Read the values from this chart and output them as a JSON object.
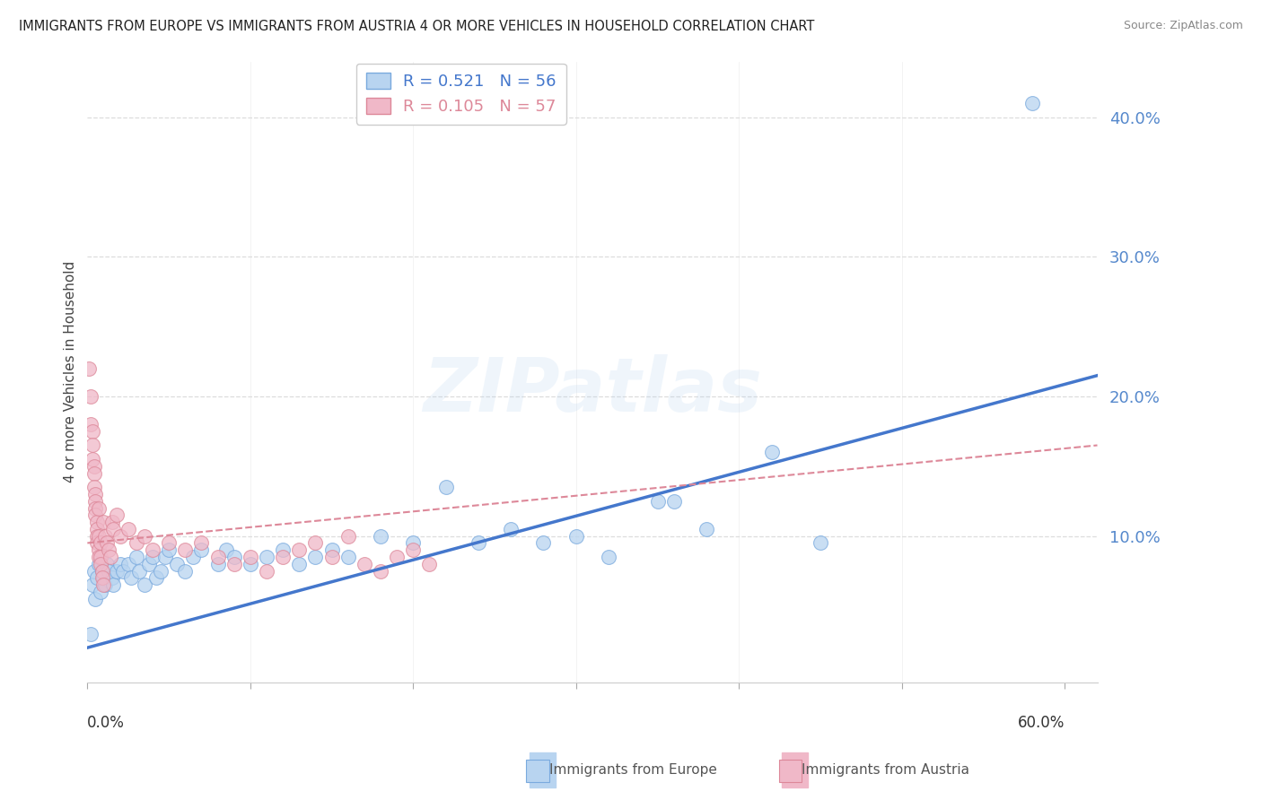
{
  "title": "IMMIGRANTS FROM EUROPE VS IMMIGRANTS FROM AUSTRIA 4 OR MORE VEHICLES IN HOUSEHOLD CORRELATION CHART",
  "source": "Source: ZipAtlas.com",
  "ylabel": "4 or more Vehicles in Household",
  "legend_europe": {
    "R": "0.521",
    "N": "56"
  },
  "legend_austria": {
    "R": "0.105",
    "N": "57"
  },
  "europe_scatter": [
    [
      0.002,
      0.03
    ],
    [
      0.003,
      0.065
    ],
    [
      0.004,
      0.075
    ],
    [
      0.005,
      0.055
    ],
    [
      0.006,
      0.07
    ],
    [
      0.007,
      0.08
    ],
    [
      0.008,
      0.06
    ],
    [
      0.009,
      0.075
    ],
    [
      0.01,
      0.07
    ],
    [
      0.011,
      0.065
    ],
    [
      0.012,
      0.08
    ],
    [
      0.013,
      0.075
    ],
    [
      0.015,
      0.07
    ],
    [
      0.016,
      0.065
    ],
    [
      0.018,
      0.075
    ],
    [
      0.02,
      0.08
    ],
    [
      0.022,
      0.075
    ],
    [
      0.025,
      0.08
    ],
    [
      0.027,
      0.07
    ],
    [
      0.03,
      0.085
    ],
    [
      0.032,
      0.075
    ],
    [
      0.035,
      0.065
    ],
    [
      0.038,
      0.08
    ],
    [
      0.04,
      0.085
    ],
    [
      0.042,
      0.07
    ],
    [
      0.045,
      0.075
    ],
    [
      0.048,
      0.085
    ],
    [
      0.05,
      0.09
    ],
    [
      0.055,
      0.08
    ],
    [
      0.06,
      0.075
    ],
    [
      0.065,
      0.085
    ],
    [
      0.07,
      0.09
    ],
    [
      0.08,
      0.08
    ],
    [
      0.085,
      0.09
    ],
    [
      0.09,
      0.085
    ],
    [
      0.1,
      0.08
    ],
    [
      0.11,
      0.085
    ],
    [
      0.12,
      0.09
    ],
    [
      0.13,
      0.08
    ],
    [
      0.14,
      0.085
    ],
    [
      0.15,
      0.09
    ],
    [
      0.16,
      0.085
    ],
    [
      0.18,
      0.1
    ],
    [
      0.2,
      0.095
    ],
    [
      0.22,
      0.135
    ],
    [
      0.24,
      0.095
    ],
    [
      0.26,
      0.105
    ],
    [
      0.28,
      0.095
    ],
    [
      0.3,
      0.1
    ],
    [
      0.32,
      0.085
    ],
    [
      0.35,
      0.125
    ],
    [
      0.36,
      0.125
    ],
    [
      0.38,
      0.105
    ],
    [
      0.42,
      0.16
    ],
    [
      0.45,
      0.095
    ],
    [
      0.58,
      0.41
    ]
  ],
  "austria_scatter": [
    [
      0.001,
      0.22
    ],
    [
      0.002,
      0.2
    ],
    [
      0.002,
      0.18
    ],
    [
      0.003,
      0.175
    ],
    [
      0.003,
      0.165
    ],
    [
      0.003,
      0.155
    ],
    [
      0.004,
      0.15
    ],
    [
      0.004,
      0.145
    ],
    [
      0.004,
      0.135
    ],
    [
      0.005,
      0.13
    ],
    [
      0.005,
      0.125
    ],
    [
      0.005,
      0.12
    ],
    [
      0.005,
      0.115
    ],
    [
      0.006,
      0.11
    ],
    [
      0.006,
      0.105
    ],
    [
      0.006,
      0.1
    ],
    [
      0.006,
      0.095
    ],
    [
      0.007,
      0.09
    ],
    [
      0.007,
      0.085
    ],
    [
      0.007,
      0.12
    ],
    [
      0.007,
      0.1
    ],
    [
      0.008,
      0.095
    ],
    [
      0.008,
      0.085
    ],
    [
      0.008,
      0.08
    ],
    [
      0.009,
      0.075
    ],
    [
      0.009,
      0.07
    ],
    [
      0.01,
      0.065
    ],
    [
      0.01,
      0.11
    ],
    [
      0.011,
      0.1
    ],
    [
      0.012,
      0.095
    ],
    [
      0.013,
      0.09
    ],
    [
      0.014,
      0.085
    ],
    [
      0.015,
      0.11
    ],
    [
      0.016,
      0.105
    ],
    [
      0.018,
      0.115
    ],
    [
      0.02,
      0.1
    ],
    [
      0.025,
      0.105
    ],
    [
      0.03,
      0.095
    ],
    [
      0.035,
      0.1
    ],
    [
      0.04,
      0.09
    ],
    [
      0.05,
      0.095
    ],
    [
      0.06,
      0.09
    ],
    [
      0.07,
      0.095
    ],
    [
      0.08,
      0.085
    ],
    [
      0.09,
      0.08
    ],
    [
      0.1,
      0.085
    ],
    [
      0.11,
      0.075
    ],
    [
      0.12,
      0.085
    ],
    [
      0.13,
      0.09
    ],
    [
      0.14,
      0.095
    ],
    [
      0.15,
      0.085
    ],
    [
      0.16,
      0.1
    ],
    [
      0.17,
      0.08
    ],
    [
      0.18,
      0.075
    ],
    [
      0.19,
      0.085
    ],
    [
      0.2,
      0.09
    ],
    [
      0.21,
      0.08
    ]
  ],
  "europe_line": {
    "x0": 0.0,
    "y0": 0.02,
    "x1": 0.62,
    "y1": 0.215
  },
  "austria_line": {
    "x0": 0.0,
    "y0": 0.095,
    "x1": 0.62,
    "y1": 0.165
  },
  "europe_line_color": "#4477cc",
  "austria_line_color": "#dd8899",
  "europe_dot_face": "#b8d4f0",
  "europe_dot_edge": "#7aaade",
  "austria_dot_face": "#f0b8c8",
  "austria_dot_edge": "#dd8899",
  "background_color": "#ffffff",
  "grid_color": "#dddddd",
  "watermark": "ZIPatlas",
  "xlim": [
    0.0,
    0.62
  ],
  "ylim": [
    -0.005,
    0.44
  ],
  "yticks": [
    0.1,
    0.2,
    0.3,
    0.4
  ],
  "ytick_labels": [
    "10.0%",
    "20.0%",
    "30.0%",
    "40.0%"
  ]
}
